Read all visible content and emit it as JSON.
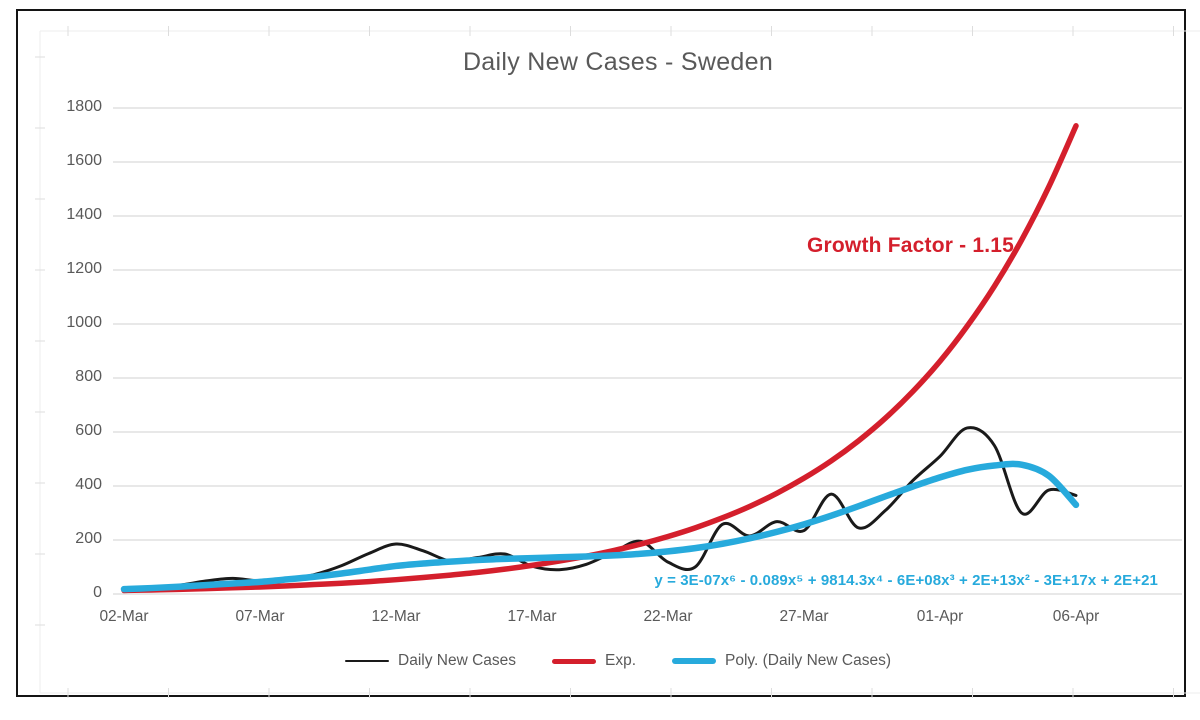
{
  "chart_data": {
    "type": "line",
    "title": "Daily New Cases - Sweden",
    "xlabel": "",
    "ylabel": "",
    "ylim": [
      0,
      1800
    ],
    "yticks": [
      0,
      200,
      400,
      600,
      800,
      1000,
      1200,
      1400,
      1600,
      1800
    ],
    "grid": "horizontal",
    "legend_position": "bottom",
    "x_dates": [
      "02-Mar",
      "03-Mar",
      "04-Mar",
      "05-Mar",
      "06-Mar",
      "07-Mar",
      "08-Mar",
      "09-Mar",
      "10-Mar",
      "11-Mar",
      "12-Mar",
      "13-Mar",
      "14-Mar",
      "15-Mar",
      "16-Mar",
      "17-Mar",
      "18-Mar",
      "19-Mar",
      "20-Mar",
      "21-Mar",
      "22-Mar",
      "23-Mar",
      "24-Mar",
      "25-Mar",
      "26-Mar",
      "27-Mar",
      "28-Mar",
      "29-Mar",
      "30-Mar",
      "31-Mar",
      "01-Apr",
      "02-Apr",
      "03-Apr",
      "04-Apr",
      "05-Apr",
      "06-Apr"
    ],
    "x_tick_labels": [
      "02-Mar",
      "07-Mar",
      "12-Mar",
      "17-Mar",
      "22-Mar",
      "27-Mar",
      "01-Apr",
      "06-Apr"
    ],
    "x_tick_positions": [
      0,
      5,
      10,
      15,
      20,
      25,
      30,
      35
    ],
    "series": [
      {
        "name": "Daily New Cases",
        "color": "#1a1a1a",
        "stroke_width": 3,
        "values": [
          20,
          25,
          32,
          48,
          58,
          48,
          52,
          72,
          105,
          150,
          185,
          160,
          122,
          135,
          148,
          103,
          90,
          110,
          155,
          195,
          118,
          100,
          258,
          215,
          268,
          235,
          370,
          245,
          310,
          420,
          510,
          615,
          550,
          300,
          385,
          365
        ]
      },
      {
        "name": "Exp.",
        "color": "#d41f2c",
        "stroke_width": 5.5,
        "values": [
          13,
          15,
          17,
          20,
          23,
          26,
          30,
          35,
          40,
          46,
          53,
          61,
          70,
          80,
          92,
          106,
          122,
          140,
          161,
          185,
          213,
          245,
          282,
          324,
          373,
          429,
          493,
          567,
          652,
          750,
          862,
          992,
          1140,
          1311,
          1508,
          1734
        ]
      },
      {
        "name": "Poly. (Daily New Cases)",
        "color": "#27aadc",
        "stroke_width": 6.5,
        "values": [
          18,
          22,
          27,
          33,
          39,
          45,
          54,
          64,
          76,
          90,
          104,
          113,
          120,
          126,
          130,
          133,
          136,
          139,
          143,
          149,
          158,
          170,
          186,
          206,
          230,
          258,
          290,
          325,
          362,
          398,
          432,
          460,
          476,
          479,
          438,
          330
        ]
      }
    ],
    "annotations": {
      "growth_factor": "Growth Factor - 1.15",
      "growth_factor_value": 1.15,
      "growth_factor_color": "#d41f2c",
      "equation": "y = 3E-07x⁶ - 0.089x⁵ + 9814.3x⁴ - 6E+08x³ + 2E+13x² - 3E+17x + 2E+21",
      "equation_color": "#27aadc"
    }
  },
  "colors": {
    "title_text": "#595959",
    "axis_text": "#595959",
    "gridline": "#dadada",
    "sheet_line": "#ededed",
    "sheet_tick": "#dddddd",
    "frame_border": "#141414"
  }
}
